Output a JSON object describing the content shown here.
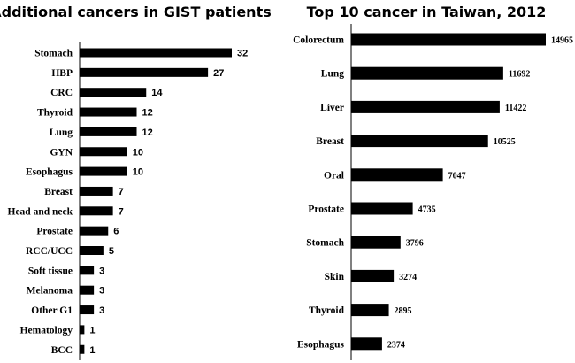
{
  "chart_data": [
    {
      "type": "bar",
      "orientation": "horizontal",
      "title": "Additional cancers in GIST patients",
      "categories": [
        "Stomach",
        "HBP",
        "CRC",
        "Thyroid",
        "Lung",
        "GYN",
        "Esophagus",
        "Breast",
        "Head and neck",
        "Prostate",
        "RCC/UCC",
        "Soft tissue",
        "Melanoma",
        "Other G1",
        "Hematology",
        "BCC"
      ],
      "values": [
        32,
        27,
        14,
        12,
        12,
        10,
        10,
        7,
        7,
        6,
        5,
        3,
        3,
        3,
        1,
        1
      ],
      "xlim": [
        0,
        32
      ],
      "grid": false
    },
    {
      "type": "bar",
      "orientation": "horizontal",
      "title": "Top 10 cancer in Taiwan, 2012",
      "categories": [
        "Colorectum",
        "Lung",
        "Liver",
        "Breast",
        "Oral",
        "Prostate",
        "Stomach",
        "Skin",
        "Thyroid",
        "Esophagus"
      ],
      "values": [
        14965,
        11692,
        11422,
        10525,
        7047,
        4735,
        3796,
        3274,
        2895,
        2374
      ],
      "xlim": [
        0,
        14965
      ],
      "grid": false
    }
  ]
}
